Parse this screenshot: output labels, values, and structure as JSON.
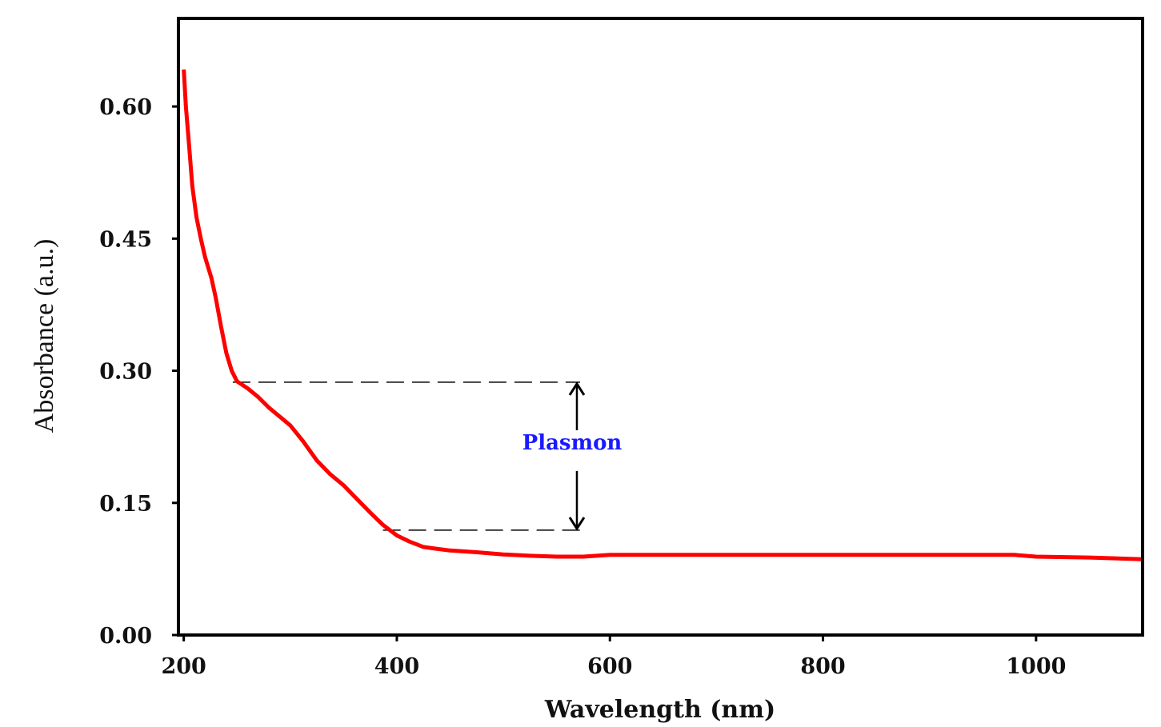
{
  "chart_data": {
    "type": "line",
    "title": "",
    "xlabel": "Wavelength (nm)",
    "ylabel": "Absorbance (a.u.)",
    "xlim": [
      195,
      1100
    ],
    "ylim": [
      0.0,
      0.7
    ],
    "xticks": [
      200,
      400,
      600,
      800,
      1000
    ],
    "xtick_labels": [
      "200",
      "400",
      "600",
      "800",
      "1000"
    ],
    "yticks": [
      0.0,
      0.15,
      0.3,
      0.45,
      0.6
    ],
    "ytick_labels": [
      "0.00",
      "0.15",
      "0.30",
      "0.45",
      "0.60"
    ],
    "grid": false,
    "series": [
      {
        "name": "Absorbance",
        "color": "#ff0000",
        "x": [
          200,
          202,
          205,
          208,
          212,
          216,
          220,
          226,
          230,
          235,
          240,
          245,
          250,
          260,
          270,
          280,
          290,
          300,
          312,
          325,
          337,
          350,
          362,
          375,
          387,
          400,
          412,
          425,
          437,
          450,
          475,
          500,
          525,
          550,
          575,
          600,
          700,
          800,
          900,
          980,
          1000,
          1050,
          1100
        ],
        "y": [
          0.642,
          0.6,
          0.556,
          0.51,
          0.474,
          0.45,
          0.429,
          0.405,
          0.383,
          0.35,
          0.32,
          0.3,
          0.288,
          0.28,
          0.27,
          0.258,
          0.248,
          0.238,
          0.22,
          0.198,
          0.183,
          0.17,
          0.155,
          0.139,
          0.125,
          0.113,
          0.106,
          0.1,
          0.098,
          0.096,
          0.094,
          0.0915,
          0.09,
          0.089,
          0.089,
          0.091,
          0.091,
          0.091,
          0.091,
          0.091,
          0.089,
          0.088,
          0.086
        ]
      }
    ],
    "annotations": [
      {
        "text": "Plasmon",
        "color": "#1a1aff",
        "x": 570,
        "y": 0.21,
        "upper_level": 0.287,
        "lower_level": 0.119,
        "upper_x_range": [
          246,
          572
        ],
        "lower_x_range": [
          387,
          572
        ],
        "arrow_x": 569
      }
    ],
    "legend": "none"
  }
}
